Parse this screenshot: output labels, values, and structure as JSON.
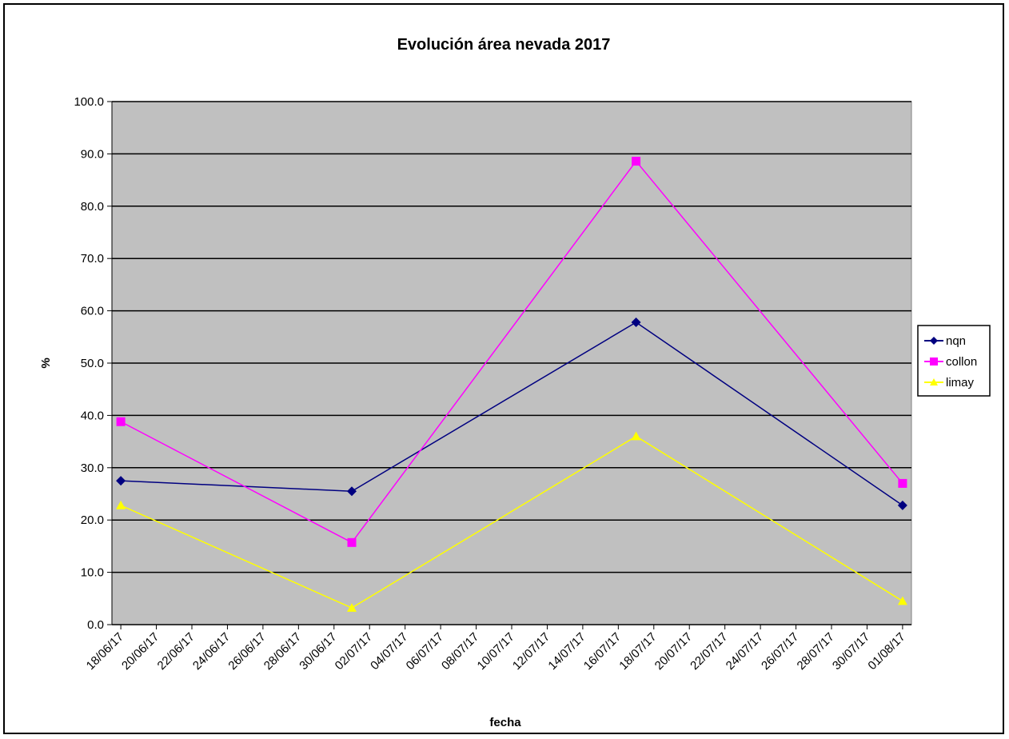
{
  "chart_data": {
    "type": "line",
    "title": "Evolución área nevada 2017",
    "xlabel": "fecha",
    "ylabel": "%",
    "ylim": [
      0,
      100
    ],
    "ytick_step": 10,
    "ytick_labels": [
      "0.0",
      "10.0",
      "20.0",
      "30.0",
      "40.0",
      "50.0",
      "60.0",
      "70.0",
      "80.0",
      "90.0",
      "100.0"
    ],
    "x_tick_labels": [
      "18/06/17",
      "20/06/17",
      "22/06/17",
      "24/06/17",
      "26/06/17",
      "28/06/17",
      "30/06/17",
      "02/07/17",
      "04/07/17",
      "06/07/17",
      "08/07/17",
      "10/07/17",
      "12/07/17",
      "14/07/17",
      "16/07/17",
      "18/07/17",
      "20/07/17",
      "22/07/17",
      "24/07/17",
      "26/07/17",
      "28/07/17",
      "30/07/17",
      "01/08/17"
    ],
    "x_dates": [
      "18/06/17",
      "01/07/17",
      "17/07/17",
      "01/08/17"
    ],
    "grid": true,
    "legend_position": "right",
    "plot_background": "#c0c0c0",
    "series": [
      {
        "name": "nqn",
        "color": "#000080",
        "marker": "diamond",
        "values": [
          27.5,
          25.5,
          57.8,
          22.8
        ]
      },
      {
        "name": "collon",
        "color": "#ff00ff",
        "marker": "square",
        "values": [
          38.8,
          15.7,
          88.6,
          27.0
        ]
      },
      {
        "name": "limay",
        "color": "#ffff00",
        "marker": "triangle",
        "values": [
          22.8,
          3.2,
          36.0,
          4.5
        ]
      }
    ]
  }
}
